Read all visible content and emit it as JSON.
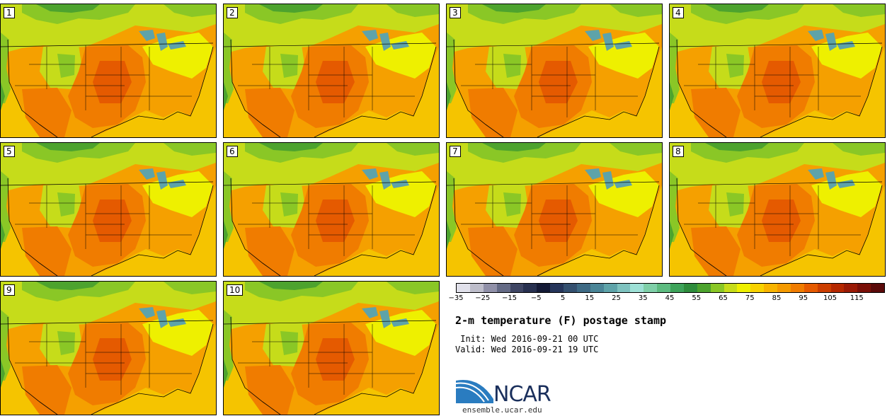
{
  "members": [
    "1",
    "2",
    "3",
    "4",
    "5",
    "6",
    "7",
    "8",
    "9",
    "10"
  ],
  "colorbar": {
    "colors": [
      "#e0e0ea",
      "#bdbdca",
      "#9090a8",
      "#646a85",
      "#3e4563",
      "#27304f",
      "#141a35",
      "#25355a",
      "#34506f",
      "#3e6a84",
      "#4a8597",
      "#5ea3a9",
      "#7ec2bf",
      "#9de0d6",
      "#7fcfa8",
      "#5dbb80",
      "#3ea35a",
      "#2e8c3c",
      "#4da32e",
      "#8ac726",
      "#c6dc1a",
      "#eef000",
      "#f8d200",
      "#f8b400",
      "#f59a00",
      "#f07c00",
      "#e55a00",
      "#cc3e00",
      "#b52800",
      "#9a1a06",
      "#7a1008",
      "#5a0a0a"
    ],
    "tick_labels": [
      "−35",
      "−25",
      "−15",
      "−5",
      "5",
      "15",
      "25",
      "35",
      "45",
      "55",
      "65",
      "75",
      "85",
      "95",
      "105",
      "115"
    ]
  },
  "title": "2-m temperature (F) postage stamp",
  "init": " Init: Wed 2016-09-21 00 UTC",
  "valid": "Valid: Wed 2016-09-21 19 UTC",
  "logo_text": "NCAR",
  "site": "ensemble.ucar.edu"
}
